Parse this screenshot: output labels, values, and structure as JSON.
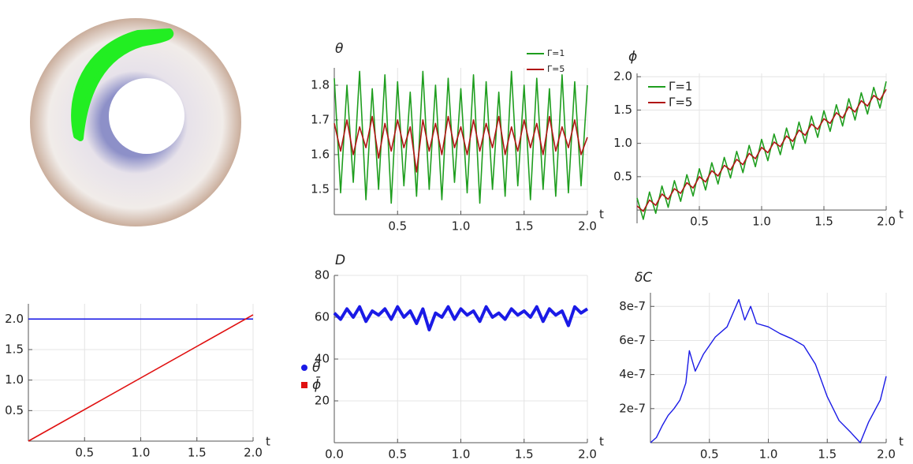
{
  "chart_data": [
    {
      "type": "line",
      "y_label": "θ",
      "x_label": "t",
      "x": [
        0,
        0.05,
        0.1,
        0.15,
        0.2,
        0.25,
        0.3,
        0.35,
        0.4,
        0.45,
        0.5,
        0.55,
        0.6,
        0.65,
        0.7,
        0.75,
        0.8,
        0.85,
        0.9,
        0.95,
        1,
        1.05,
        1.1,
        1.15,
        1.2,
        1.25,
        1.3,
        1.35,
        1.4,
        1.45,
        1.5,
        1.55,
        1.6,
        1.65,
        1.7,
        1.75,
        1.8,
        1.85,
        1.9,
        1.95,
        2
      ],
      "series": [
        {
          "name": "Γ=1",
          "color": "#1f9e1f",
          "values": [
            1.82,
            1.49,
            1.8,
            1.52,
            1.84,
            1.47,
            1.79,
            1.5,
            1.83,
            1.46,
            1.81,
            1.51,
            1.78,
            1.48,
            1.84,
            1.5,
            1.8,
            1.47,
            1.82,
            1.52,
            1.79,
            1.49,
            1.83,
            1.46,
            1.81,
            1.5,
            1.78,
            1.48,
            1.84,
            1.51,
            1.8,
            1.47,
            1.82,
            1.5,
            1.79,
            1.48,
            1.83,
            1.49,
            1.81,
            1.51,
            1.8
          ]
        },
        {
          "name": "Γ=5",
          "color": "#b01515",
          "values": [
            1.69,
            1.61,
            1.7,
            1.6,
            1.68,
            1.62,
            1.71,
            1.59,
            1.69,
            1.61,
            1.7,
            1.62,
            1.68,
            1.55,
            1.7,
            1.61,
            1.69,
            1.6,
            1.71,
            1.62,
            1.68,
            1.6,
            1.7,
            1.61,
            1.69,
            1.62,
            1.71,
            1.6,
            1.68,
            1.61,
            1.7,
            1.62,
            1.69,
            1.6,
            1.71,
            1.61,
            1.68,
            1.62,
            1.7,
            1.6,
            1.65
          ]
        }
      ],
      "xlim": [
        0,
        2
      ],
      "ylim": [
        1.427,
        1.85
      ],
      "xticks": [
        0.5,
        {
          "value": 1,
          "label": "1.0"
        },
        1.5,
        {
          "value": 2,
          "label": "2.0"
        }
      ],
      "yticks": [
        1.5,
        1.6,
        1.7,
        1.8
      ],
      "grid": true,
      "legend": "top-right"
    },
    {
      "type": "line",
      "y_label": "ϕ",
      "x_label": "t",
      "x": [
        0,
        0.05,
        0.1,
        0.15,
        0.2,
        0.25,
        0.3,
        0.35,
        0.4,
        0.45,
        0.5,
        0.55,
        0.6,
        0.65,
        0.7,
        0.75,
        0.8,
        0.85,
        0.9,
        0.95,
        1,
        1.05,
        1.1,
        1.15,
        1.2,
        1.25,
        1.3,
        1.35,
        1.4,
        1.45,
        1.5,
        1.55,
        1.6,
        1.65,
        1.7,
        1.75,
        1.8,
        1.85,
        1.9,
        1.95,
        2
      ],
      "series": [
        {
          "name": "Γ=1",
          "color": "#1f9e1f",
          "values": [
            0.18,
            -0.14,
            0.27,
            -0.05,
            0.36,
            0.04,
            0.44,
            0.13,
            0.53,
            0.21,
            0.62,
            0.3,
            0.71,
            0.39,
            0.79,
            0.48,
            0.88,
            0.56,
            0.97,
            0.65,
            1.06,
            0.74,
            1.14,
            0.83,
            1.23,
            0.91,
            1.32,
            1.0,
            1.41,
            1.09,
            1.49,
            1.18,
            1.58,
            1.26,
            1.67,
            1.35,
            1.76,
            1.44,
            1.84,
            1.53,
            1.93
          ]
        },
        {
          "name": "Γ=5",
          "color": "#b01515",
          "values": [
            0.06,
            -0.02,
            0.15,
            0.07,
            0.24,
            0.16,
            0.32,
            0.25,
            0.41,
            0.33,
            0.5,
            0.42,
            0.59,
            0.51,
            0.67,
            0.6,
            0.76,
            0.68,
            0.85,
            0.77,
            0.94,
            0.86,
            1.02,
            0.95,
            1.11,
            1.03,
            1.2,
            1.12,
            1.29,
            1.21,
            1.37,
            1.3,
            1.46,
            1.38,
            1.55,
            1.47,
            1.64,
            1.56,
            1.72,
            1.65,
            1.81
          ]
        }
      ],
      "xlim": [
        0,
        2
      ],
      "ylim": [
        -0.2,
        2.05
      ],
      "xticks": [
        0.5,
        {
          "value": 1,
          "label": "1.0"
        },
        1.5,
        {
          "value": 2,
          "label": "2.0"
        }
      ],
      "yticks": [
        0.5,
        {
          "value": 1,
          "label": "1.0"
        },
        1.5,
        {
          "value": 2,
          "label": "2.0"
        }
      ],
      "grid": true,
      "legend": "top-left"
    },
    {
      "type": "line",
      "x_label": "t",
      "x": [
        0,
        2
      ],
      "series": [
        {
          "name": "θ̄",
          "color": "#1a1ae6",
          "marker": "circle",
          "values": [
            2,
            2
          ]
        },
        {
          "name": "ϕ̄",
          "color": "#e01010",
          "marker": "square",
          "values": [
            0,
            2.07
          ]
        }
      ],
      "xlim": [
        0,
        2
      ],
      "ylim": [
        0,
        2.25
      ],
      "xticks": [
        0.5,
        {
          "value": 1,
          "label": "1.0"
        },
        1.5,
        {
          "value": 2,
          "label": "2.0"
        }
      ],
      "yticks": [
        0.5,
        {
          "value": 1,
          "label": "1.0"
        },
        1.5,
        {
          "value": 2,
          "label": "2.0"
        }
      ],
      "grid": true,
      "legend": "right"
    },
    {
      "type": "line",
      "y_label": "D",
      "x_label": "t",
      "x": [
        0,
        0.05,
        0.1,
        0.15,
        0.2,
        0.25,
        0.3,
        0.35,
        0.4,
        0.45,
        0.5,
        0.55,
        0.6,
        0.65,
        0.7,
        0.75,
        0.8,
        0.85,
        0.9,
        0.95,
        1,
        1.05,
        1.1,
        1.15,
        1.2,
        1.25,
        1.3,
        1.35,
        1.4,
        1.45,
        1.5,
        1.55,
        1.6,
        1.65,
        1.7,
        1.75,
        1.8,
        1.85,
        1.9,
        1.95,
        2
      ],
      "values": [
        62,
        59,
        64,
        60,
        65,
        58,
        63,
        61,
        64,
        59,
        65,
        60,
        63,
        57,
        64,
        54,
        62,
        60,
        65,
        59,
        64,
        61,
        63,
        58,
        65,
        60,
        62,
        59,
        64,
        61,
        63,
        60,
        65,
        58,
        64,
        61,
        63,
        56,
        65,
        62,
        64
      ],
      "color": "#1a1ae6",
      "xlim": [
        0,
        2
      ],
      "ylim": [
        0,
        80
      ],
      "xticks": [
        {
          "value": 0,
          "label": "0.0"
        },
        0.5,
        {
          "value": 1,
          "label": "1.0"
        },
        1.5,
        {
          "value": 2,
          "label": "2.0"
        }
      ],
      "yticks": [
        20,
        40,
        60,
        80
      ],
      "grid": true
    },
    {
      "type": "line",
      "y_label": "δC",
      "x_label": "t",
      "x": [
        0,
        0.05,
        0.1,
        0.15,
        0.2,
        0.25,
        0.3,
        0.33,
        0.38,
        0.45,
        0.55,
        0.65,
        0.75,
        0.8,
        0.85,
        0.9,
        1.0,
        1.1,
        1.2,
        1.3,
        1.4,
        1.5,
        1.6,
        1.7,
        1.78,
        1.85,
        1.95,
        2.0
      ],
      "values": [
        0,
        3e-08,
        1e-07,
        1.6e-07,
        2e-07,
        2.5e-07,
        3.5e-07,
        5.4e-07,
        4.2e-07,
        5.2e-07,
        6.2e-07,
        6.8e-07,
        8.4e-07,
        7.2e-07,
        8e-07,
        7e-07,
        6.8e-07,
        6.4e-07,
        6.1e-07,
        5.7e-07,
        4.6e-07,
        2.7e-07,
        1.3e-07,
        6e-08,
        0,
        1.2e-07,
        2.5e-07,
        3.9e-07
      ],
      "color": "#1a1ae6",
      "xlim": [
        0,
        2
      ],
      "ylim": [
        0,
        8.8e-07
      ],
      "xticks": [
        0.5,
        {
          "value": 1,
          "label": "1.0"
        },
        1.5,
        {
          "value": 2,
          "label": "2.0"
        }
      ],
      "yticks": [
        {
          "value": 2e-07,
          "label": "2e-7"
        },
        {
          "value": 4e-07,
          "label": "4e-7"
        },
        {
          "value": 6e-07,
          "label": "6e-7"
        },
        {
          "value": 8e-07,
          "label": "8e-7"
        }
      ],
      "grid": true
    }
  ]
}
